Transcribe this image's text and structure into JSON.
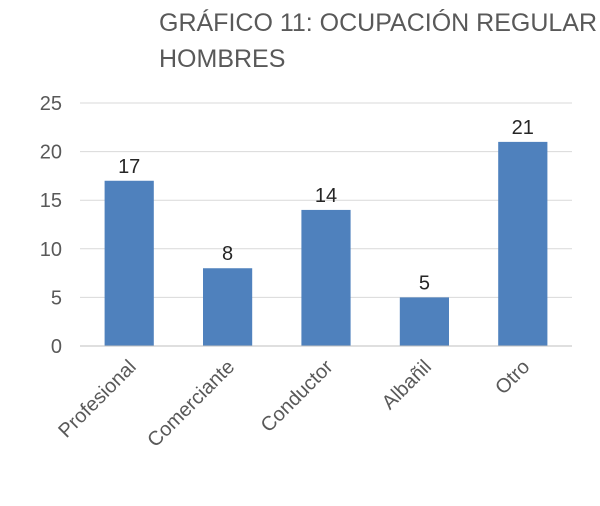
{
  "chart_data": {
    "type": "bar",
    "title_lines": [
      "GRÁFICO 11: OCUPACIÓN REGULAR",
      "HOMBRES"
    ],
    "categories": [
      "Profesional",
      "Comerciante",
      "Conductor",
      "Albañil",
      "Otro"
    ],
    "values": [
      17,
      8,
      14,
      5,
      21
    ],
    "data_labels": [
      "17",
      "8",
      "14",
      "5",
      "21"
    ],
    "ylim": [
      0,
      25
    ],
    "yticks": [
      0,
      5,
      10,
      15,
      20,
      25
    ],
    "ytick_labels": [
      "0",
      "5",
      "10",
      "15",
      "20",
      "25"
    ],
    "grid": true,
    "legend": "none",
    "colors": {
      "bar": "#4f81bd",
      "grid": "#d9d9d9",
      "axis": "#bfbfbf",
      "text": "#595959",
      "label": "#262626"
    }
  }
}
